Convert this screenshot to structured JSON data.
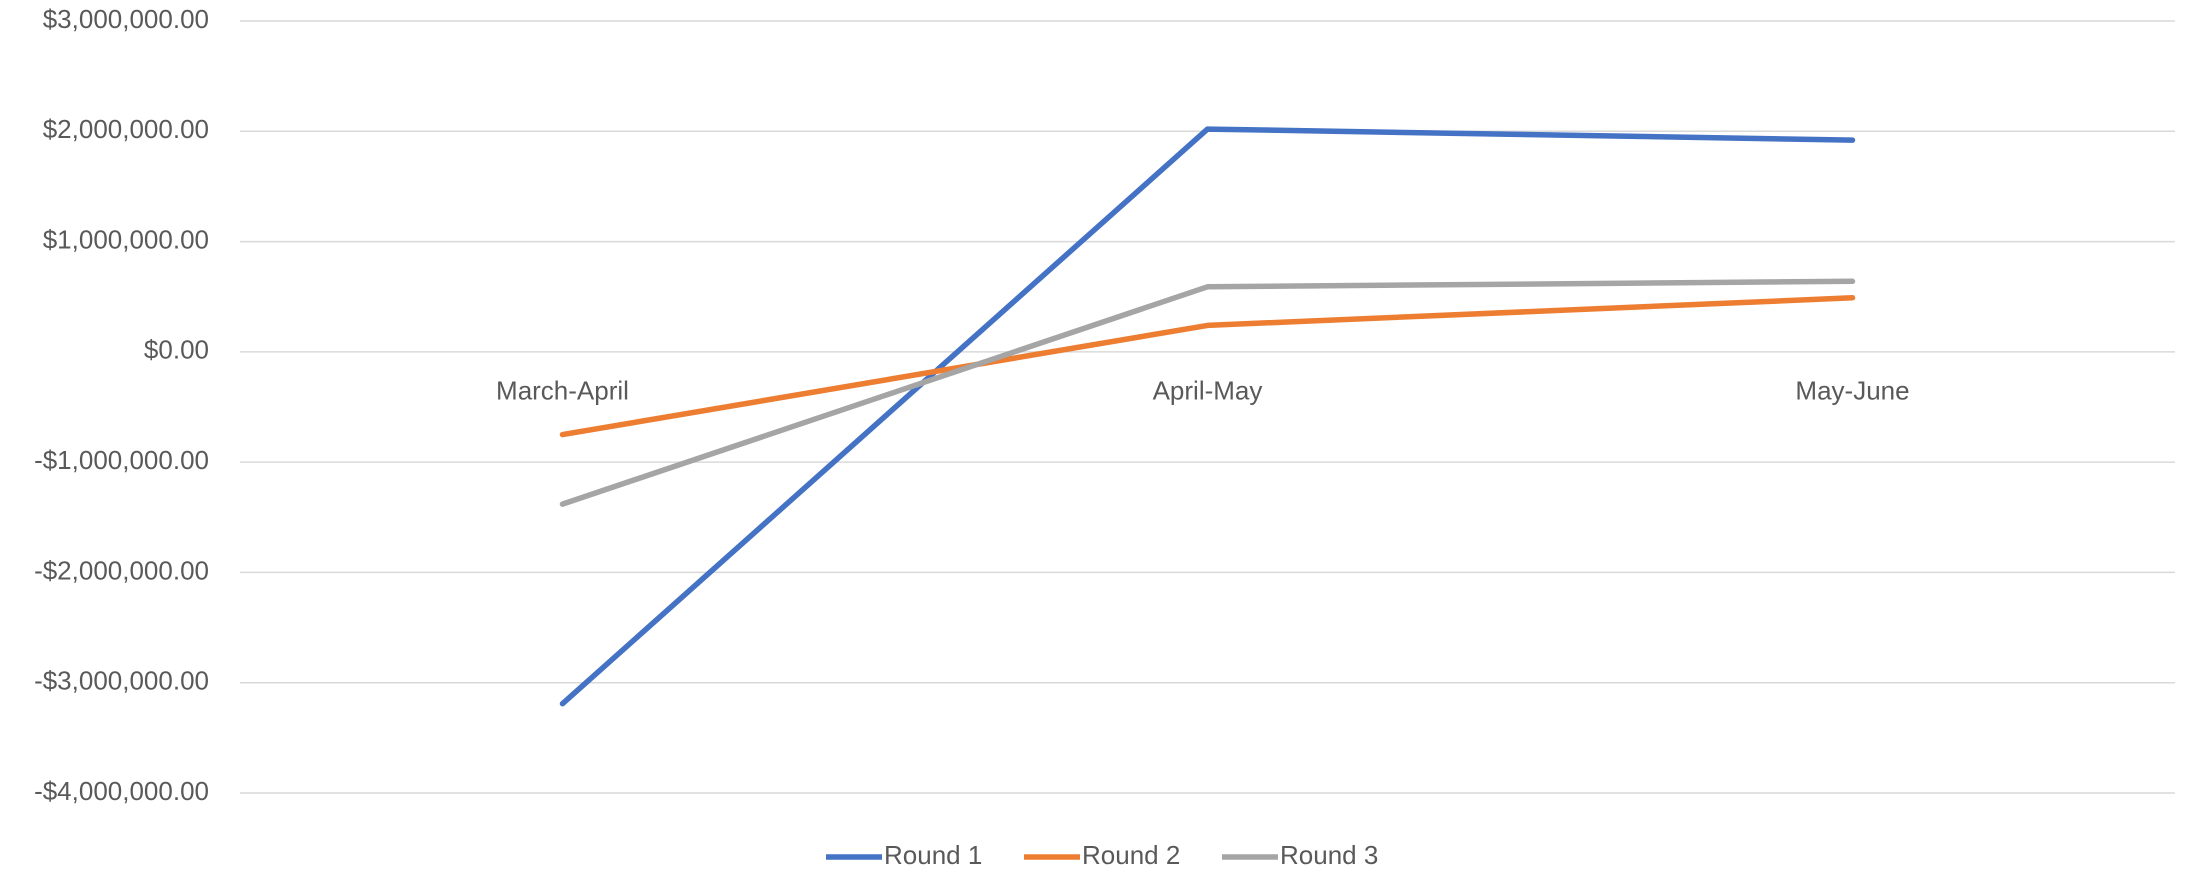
{
  "chart_data": {
    "type": "line",
    "categories": [
      "March-April",
      "April-May",
      "May-June"
    ],
    "series": [
      {
        "name": "Round 1",
        "color": "#4472c4",
        "values": [
          -3190000,
          2020000,
          1920000
        ]
      },
      {
        "name": "Round 2",
        "color": "#ed7d31",
        "values": [
          -750000,
          240000,
          490000
        ]
      },
      {
        "name": "Round 3",
        "color": "#a5a5a5",
        "values": [
          -1380000,
          590000,
          640000
        ]
      }
    ],
    "ylim": [
      -4000000,
      3000000
    ],
    "yticks": [
      {
        "value": -4000000,
        "label": "-$4,000,000.00"
      },
      {
        "value": -3000000,
        "label": "-$3,000,000.00"
      },
      {
        "value": -2000000,
        "label": "-$2,000,000.00"
      },
      {
        "value": -1000000,
        "label": "-$1,000,000.00"
      },
      {
        "value": 0,
        "label": "$0.00"
      },
      {
        "value": 1000000,
        "label": "$1,000,000.00"
      },
      {
        "value": 2000000,
        "label": "$2,000,000.00"
      },
      {
        "value": 3000000,
        "label": "$3,000,000.00"
      }
    ],
    "grid": true,
    "legend": "bottom"
  }
}
